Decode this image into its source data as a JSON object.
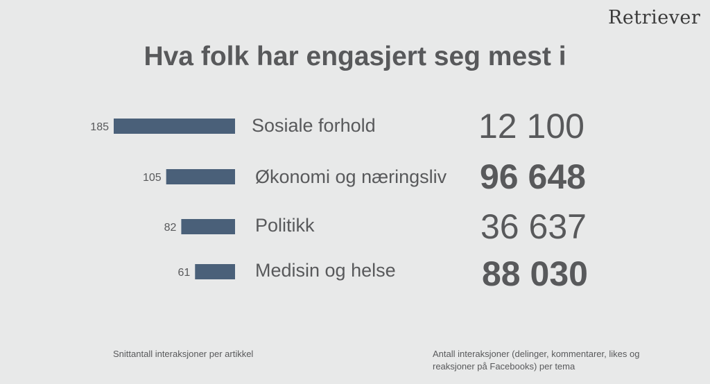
{
  "logo": "Retriever",
  "chart_data": {
    "type": "bar",
    "title": "Hva folk har engasjert seg mest i",
    "categories": [
      "Sosiale forhold",
      "Økonomi og næringsliv",
      "Politikk",
      "Medisin og helse"
    ],
    "values": [
      185,
      105,
      82,
      61
    ],
    "value_labels": [
      "185",
      "105",
      "82",
      "61"
    ],
    "totals": [
      "12 100",
      "96 648",
      "36 637",
      "88 030"
    ],
    "totals_bold": [
      false,
      true,
      false,
      true
    ],
    "bar_color": "#4a6079",
    "left_note": "Snittantall interaksjoner per artikkel",
    "right_note": "Antall interaksjoner (delinger, kommentarer, likes og reaksjoner på Facebooks) per tema"
  }
}
